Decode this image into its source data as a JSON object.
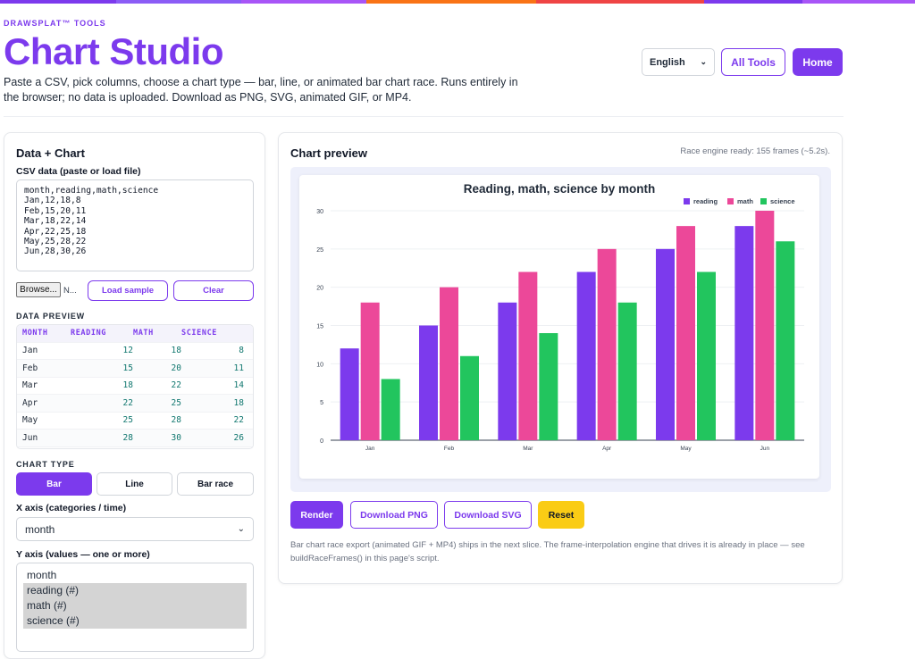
{
  "topbar_colors": [
    "#7c3aed",
    "#8b5cf6",
    "#a855f7",
    "#f97316",
    "#ef4444",
    "#7c3aed",
    "#a855f7"
  ],
  "header": {
    "brand": "DRAWSPLAT™ TOOLS",
    "title": "Chart Studio",
    "description": "Paste a CSV, pick columns, choose a chart type — bar, line, or animated bar chart race. Runs entirely in the browser; no data is uploaded. Download as PNG, SVG, animated GIF, or MP4.",
    "language": "English",
    "all_tools": "All Tools",
    "home": "Home"
  },
  "left": {
    "heading": "Data + Chart",
    "csv_label": "CSV data (paste or load file)",
    "csv_text": "month,reading,math,science\nJan,12,18,8\nFeb,15,20,11\nMar,18,22,14\nApr,22,25,18\nMay,25,28,22\nJun,28,30,26",
    "browse": "Browse...",
    "file_name": "N...",
    "load_sample": "Load sample",
    "clear": "Clear",
    "preview_label": "DATA PREVIEW",
    "preview_headers": [
      "MONTH",
      "READING",
      "MATH",
      "SCIENCE"
    ],
    "preview_rows": [
      [
        "Jan",
        "12",
        "18",
        "8"
      ],
      [
        "Feb",
        "15",
        "20",
        "11"
      ],
      [
        "Mar",
        "18",
        "22",
        "14"
      ],
      [
        "Apr",
        "22",
        "25",
        "18"
      ],
      [
        "May",
        "25",
        "28",
        "22"
      ],
      [
        "Jun",
        "28",
        "30",
        "26"
      ]
    ],
    "chart_type_label": "CHART TYPE",
    "chart_types": [
      "Bar",
      "Line",
      "Bar race"
    ],
    "selected_type": "Bar",
    "x_axis_label": "X axis (categories / time)",
    "x_axis_value": "month",
    "y_axis_label": "Y axis (values — one or more)",
    "y_options": [
      {
        "label": "month",
        "selected": false
      },
      {
        "label": "reading (#)",
        "selected": true
      },
      {
        "label": "math (#)",
        "selected": true
      },
      {
        "label": "science (#)",
        "selected": true
      }
    ]
  },
  "right": {
    "heading": "Chart preview",
    "status": "Race engine ready: 155 frames (~5.2s).",
    "render": "Render",
    "download_png": "Download PNG",
    "download_svg": "Download SVG",
    "reset": "Reset",
    "note": "Bar chart race export (animated GIF + MP4) ships in the next slice. The frame-interpolation engine that drives it is already in place — see buildRaceFrames() in this page's script."
  },
  "chart_data": {
    "type": "bar",
    "title": "Reading, math, science by month",
    "categories": [
      "Jan",
      "Feb",
      "Mar",
      "Apr",
      "May",
      "Jun"
    ],
    "series": [
      {
        "name": "reading",
        "color": "#7c3aed",
        "values": [
          12,
          15,
          18,
          22,
          25,
          28
        ]
      },
      {
        "name": "math",
        "color": "#ec4899",
        "values": [
          18,
          20,
          22,
          25,
          28,
          30
        ]
      },
      {
        "name": "science",
        "color": "#22c55e",
        "values": [
          8,
          11,
          14,
          18,
          22,
          26
        ]
      }
    ],
    "ylim": [
      0,
      30
    ],
    "yticks": [
      0,
      5,
      10,
      15,
      20,
      25,
      30
    ],
    "grid": true,
    "legend": "top-right"
  }
}
